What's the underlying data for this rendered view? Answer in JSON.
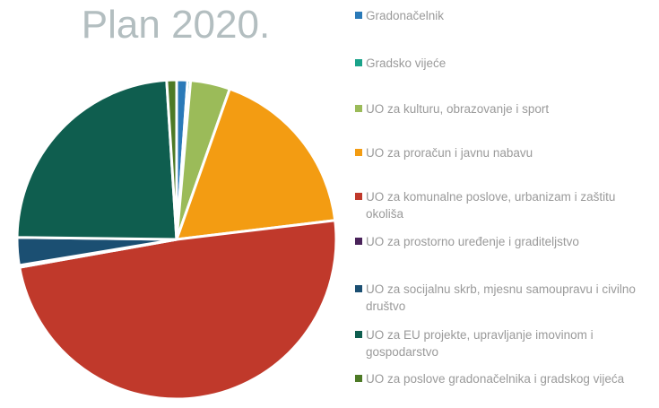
{
  "chart_data": {
    "type": "pie",
    "title": "Plan 2020.",
    "categories": [
      "Gradonačelnik",
      "Gradsko vijeće",
      "UO za kulturu, obrazovanje i sport",
      "UO za proračun i javnu nabavu",
      "UO za komunalne poslove, urbanizam i zaštitu okoliša",
      "UO za prostorno uređenje i graditeljstvo",
      "UO za socijalnu skrb, mjesnu samoupravu i civilno društvo",
      "UO za EU projekte, upravljanje imovinom i gospodarstvo",
      "UO za poslove gradonačelnika i gradskog vijeća"
    ],
    "values": [
      1.1,
      0.3,
      4,
      17.7,
      49.1,
      0.2,
      2.8,
      23.8,
      1
    ],
    "colors": [
      "#2a7ab8",
      "#1aa38a",
      "#9bbb59",
      "#f39c12",
      "#c0392b",
      "#4a235a",
      "#1b4f72",
      "#0f5e4f",
      "#4d7a26"
    ],
    "legend": "right"
  }
}
